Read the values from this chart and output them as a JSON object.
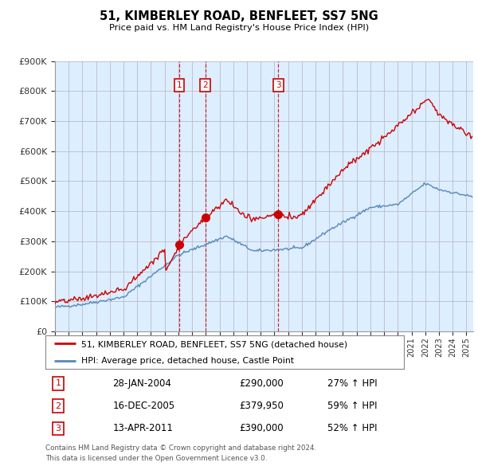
{
  "title": "51, KIMBERLEY ROAD, BENFLEET, SS7 5NG",
  "subtitle": "Price paid vs. HM Land Registry's House Price Index (HPI)",
  "legend_line1": "51, KIMBERLEY ROAD, BENFLEET, SS7 5NG (detached house)",
  "legend_line2": "HPI: Average price, detached house, Castle Point",
  "footer1": "Contains HM Land Registry data © Crown copyright and database right 2024.",
  "footer2": "This data is licensed under the Open Government Licence v3.0.",
  "transactions": [
    {
      "num": 1,
      "date": "28-JAN-2004",
      "price": "£290,000",
      "hpi": "27% ↑ HPI",
      "year": 2004.07
    },
    {
      "num": 2,
      "date": "16-DEC-2005",
      "price": "£379,950",
      "hpi": "59% ↑ HPI",
      "year": 2005.96
    },
    {
      "num": 3,
      "date": "13-APR-2011",
      "price": "£390,000",
      "hpi": "52% ↑ HPI",
      "year": 2011.29
    }
  ],
  "transaction_values": [
    290000,
    379950,
    390000
  ],
  "red_color": "#cc0000",
  "blue_color": "#5588bb",
  "vline_color": "#cc0000",
  "background_color": "#ffffff",
  "chart_bg_color": "#ddeeff",
  "grid_color": "#bbbbcc",
  "ylim": [
    0,
    900000
  ],
  "xlim_start": 1995,
  "xlim_end": 2025.5,
  "yticks": [
    0,
    100000,
    200000,
    300000,
    400000,
    500000,
    600000,
    700000,
    800000,
    900000
  ],
  "ytick_labels": [
    "£0",
    "£100K",
    "£200K",
    "£300K",
    "£400K",
    "£500K",
    "£600K",
    "£700K",
    "£800K",
    "£900K"
  ]
}
